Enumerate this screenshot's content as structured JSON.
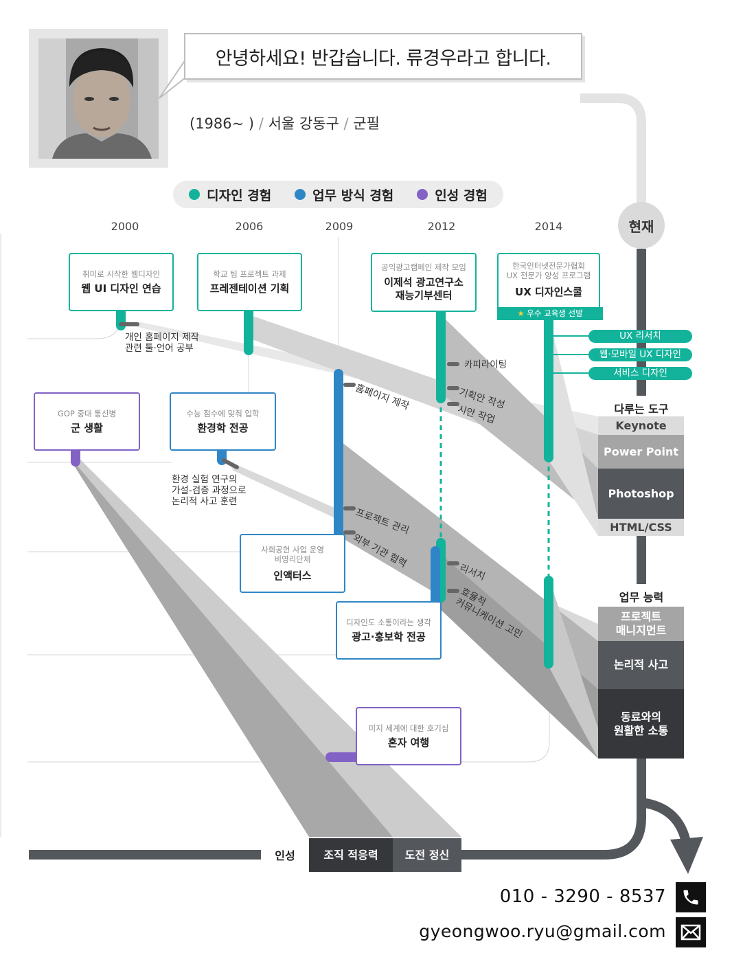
{
  "header": {
    "greeting": "안녕하세요! 반갑습니다. 류경우라고 합니다.",
    "birth": "(1986~ )",
    "sep1": "/",
    "location": "서울 강동구",
    "sep2": "/",
    "military": "군필"
  },
  "legend": {
    "design": {
      "label": "디자인 경험",
      "color": "#13b39b"
    },
    "work": {
      "label": "업무 방식 경험",
      "color": "#2f86c6"
    },
    "character": {
      "label": "인성 경험",
      "color": "#8262c4"
    }
  },
  "timeline": {
    "years": [
      "2000",
      "2006",
      "2009",
      "2012",
      "2014"
    ],
    "now": "현재"
  },
  "events": {
    "web_ui": {
      "sub": "취미로 시작한 웹디자인",
      "main": "웹 UI 디자인 연습"
    },
    "presentation": {
      "sub": "학교 팀 프로젝트 과제",
      "main": "프레젠테이션 기획"
    },
    "ad_lab": {
      "sub": "공익광고캠페인 제작 모임",
      "main1": "이제석 광고연구소",
      "main2": "재능기부센터"
    },
    "ux_school": {
      "sub1": "한국인터넷전문가협회",
      "sub2": "UX 전문가 양성 프로그램",
      "main": "UX 디자인스쿨",
      "badge": "우수 교육생 선발"
    },
    "army": {
      "sub": "GOP 중대 통신병",
      "main": "군 생활"
    },
    "env_major": {
      "sub": "수능 점수에 맞춰 입학",
      "main": "환경학 전공"
    },
    "enactus": {
      "sub1": "사회공헌 사업 운영",
      "sub2": "비영리단체",
      "main": "인액터스"
    },
    "ad_major": {
      "sub": "디자인도 소통이라는 생각",
      "main": "광고·홍보학 전공"
    },
    "travel": {
      "sub": "미지 세계에 대한 호기심",
      "main": "혼자 여행"
    }
  },
  "annotations": {
    "homepage1": "개인 홈페이지 제작",
    "homepage2": "관련 툴·언어 공부",
    "copywriting": "카피라이팅",
    "planning": "기획안 작성",
    "draft": "시안 작업",
    "homepage_make": "홈페이지 제작",
    "env1": "환경 실험 연구의",
    "env2": "가설-검증 과정으로",
    "env3": "논리적 사고 훈련",
    "pm": "프로젝트 관리",
    "external": "외부 기관 협력",
    "research": "리서치",
    "comm1": "효율적",
    "comm2": "커뮤니케이션 고민"
  },
  "skills": [
    "UX 리서치",
    "웹·모바일 UX 디자인",
    "서비스 디자인"
  ],
  "tools": {
    "title": "다루는 도구",
    "items": [
      {
        "label": "Keynote",
        "bg": "#dcdcdc",
        "fg": "#444444"
      },
      {
        "label": "Power Point",
        "bg": "#a5a5a5",
        "fg": "#ffffff"
      },
      {
        "label": "Photoshop",
        "bg": "#54575c",
        "fg": "#ffffff"
      },
      {
        "label": "HTML/CSS",
        "bg": "#dcdcdc",
        "fg": "#444444"
      }
    ]
  },
  "abilities": {
    "title": "업무 능력",
    "items": [
      {
        "label1": "프로젝트",
        "label2": "매니지먼트",
        "bg": "#a5a5a5"
      },
      {
        "label1": "논리적 사고",
        "label2": "",
        "bg": "#54575c"
      },
      {
        "label1": "동료와의",
        "label2": "원활한 소통",
        "bg": "#35373b"
      }
    ]
  },
  "character": {
    "title": "인성",
    "items": [
      {
        "label": "조직 적응력",
        "bg": "#35373b"
      },
      {
        "label": "도전 정신",
        "bg": "#54575c"
      }
    ]
  },
  "contact": {
    "phone": "010 - 3290 - 8537",
    "email": "gyeongwoo.ryu@gmail.com"
  }
}
